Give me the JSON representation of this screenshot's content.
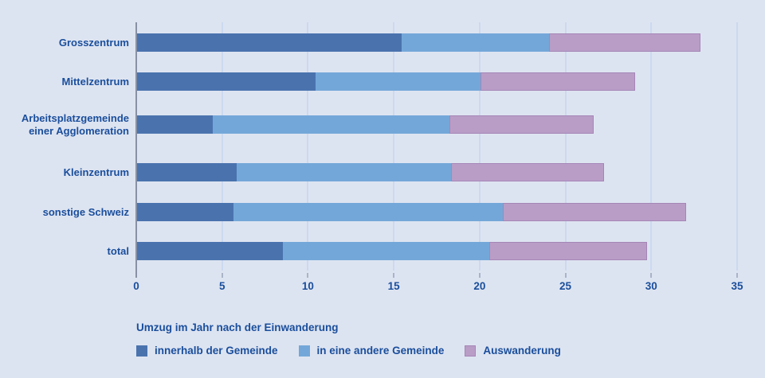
{
  "colors": {
    "background": "#dde4f1",
    "text_blue": "#1a4e9c",
    "gridline": "#cbd9f0",
    "axis_line": "#8792a6",
    "series_dark_blue": "#4a73ae",
    "series_light_blue": "#74a7d9",
    "series_pink": "#b99dc7"
  },
  "chart_data": {
    "type": "bar",
    "orientation": "horizontal",
    "stacked": true,
    "grid": true,
    "legend_position": "bottom",
    "legend_title": "Umzug im Jahr nach der Einwanderung",
    "categories": [
      "Grosszentrum",
      "Mittelzentrum",
      "Arbeitsplatzgemeinde einer Agglomeration",
      "Kleinzentrum",
      "sonstige Schweiz",
      "total"
    ],
    "series": [
      {
        "name": "innerhalb der Gemeinde",
        "color": "#4a73ae",
        "values": [
          15.4,
          10.4,
          4.4,
          5.8,
          5.6,
          8.5
        ]
      },
      {
        "name": "in eine andere Gemeinde",
        "color": "#74a7d9",
        "values": [
          8.6,
          9.6,
          13.8,
          12.5,
          15.7,
          12.0
        ]
      },
      {
        "name": "Auswanderung",
        "color": "#b99dc7",
        "values": [
          8.8,
          9.0,
          8.4,
          8.9,
          10.7,
          9.2
        ]
      }
    ],
    "stack_totals": [
      32.8,
      29.0,
      26.6,
      27.2,
      32.0,
      29.7
    ],
    "x_ticks": [
      0,
      5,
      10,
      15,
      20,
      25,
      30,
      35
    ],
    "xlim": [
      0,
      35
    ],
    "xlabel": "",
    "ylabel": ""
  }
}
